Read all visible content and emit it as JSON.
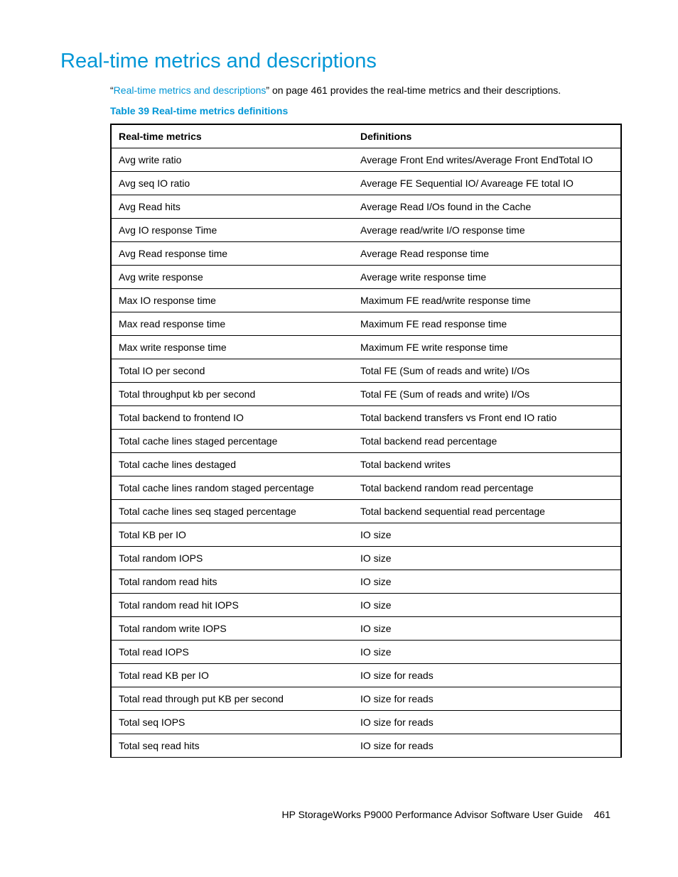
{
  "title": "Real-time metrics and descriptions",
  "intro_quote_open": "“",
  "intro_link": "Real-time metrics and descriptions",
  "intro_rest": "” on page 461 provides the real-time metrics and their descriptions.",
  "caption": "Table 39 Real-time metrics definitions",
  "columns": [
    "Real-time metrics",
    "Definitions"
  ],
  "rows": [
    [
      "Avg write ratio",
      "Average Front End writes/Average Front EndTotal IO"
    ],
    [
      "Avg seq IO ratio",
      "Average FE Sequential IO/ Avareage FE total IO"
    ],
    [
      "Avg Read hits",
      "Average Read I/Os found in the Cache"
    ],
    [
      "Avg IO response Time",
      "Average read/write I/O response time"
    ],
    [
      "Avg Read response time",
      "Average Read response time"
    ],
    [
      "Avg write response",
      "Average write response time"
    ],
    [
      "Max IO response time",
      "Maximum FE read/write response time"
    ],
    [
      "Max read response time",
      "Maximum FE read response time"
    ],
    [
      "Max write response time",
      "Maximum FE write response time"
    ],
    [
      "Total IO per second",
      "Total FE (Sum of reads and write) I/Os"
    ],
    [
      "Total throughput kb per second",
      "Total FE (Sum of reads and write) I/Os"
    ],
    [
      "Total backend to frontend IO",
      "Total backend transfers vs Front end IO ratio"
    ],
    [
      "Total cache lines staged percentage",
      "Total backend read percentage"
    ],
    [
      "Total cache lines destaged",
      "Total backend writes"
    ],
    [
      "Total cache lines random staged percentage",
      "Total backend random read percentage"
    ],
    [
      "Total cache lines seq staged percentage",
      "Total backend sequential read percentage"
    ],
    [
      "Total KB per IO",
      "IO size"
    ],
    [
      "Total random IOPS",
      "IO size"
    ],
    [
      "Total random read hits",
      "IO size"
    ],
    [
      "Total random read hit IOPS",
      "IO size"
    ],
    [
      "Total random write IOPS",
      "IO size"
    ],
    [
      "Total read IOPS",
      "IO size"
    ],
    [
      "Total read KB per IO",
      "IO size for reads"
    ],
    [
      "Total read through put KB per second",
      "IO size for reads"
    ],
    [
      "Total seq IOPS",
      "IO size for reads"
    ],
    [
      "Total seq read hits",
      "IO size for reads"
    ]
  ],
  "footer_text": "HP StorageWorks P9000 Performance Advisor Software User Guide",
  "footer_page": "461"
}
